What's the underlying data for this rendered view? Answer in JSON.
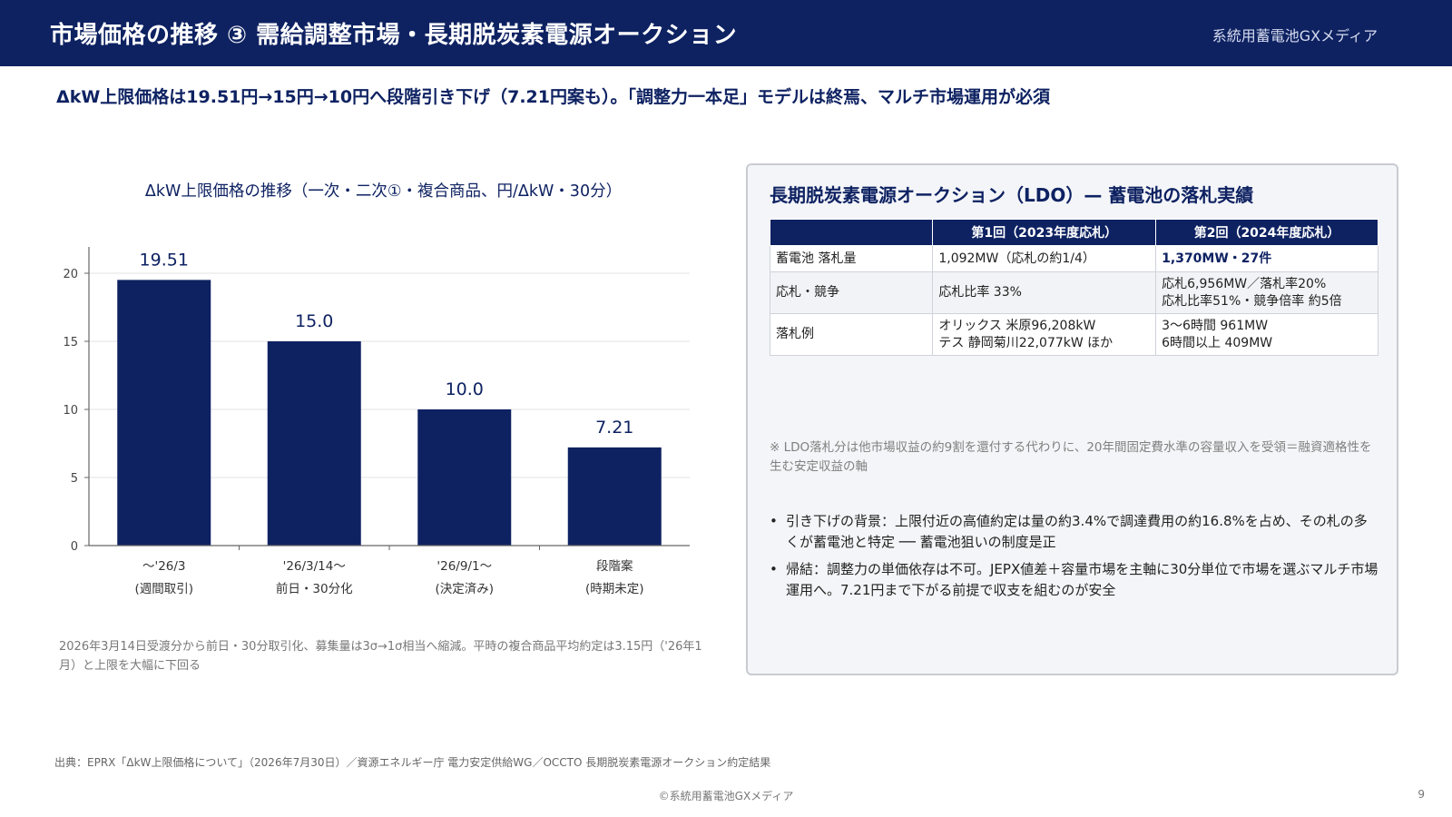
{
  "header": {
    "title": "市場価格の推移 ③ 需給調整市場・長期脱炭素電源オークション",
    "brand": "系統用蓄電池GXメディア"
  },
  "lead": "ΔkW上限価格は19.51円→15円→10円へ段階引き下げ（7.21円案も）。「調整力一本足」モデルは終焉、マルチ市場運用が必須",
  "chart_data": {
    "type": "bar",
    "title": "ΔkW上限価格の推移（一次・二次①・複合商品、円/ΔkW・30分）",
    "categories": [
      [
        "〜'26/3",
        "(週間取引)"
      ],
      [
        "'26/3/14〜",
        "前日・30分化"
      ],
      [
        "'26/9/1〜",
        "(決定済み)"
      ],
      [
        "段階案",
        "(時期未定)"
      ]
    ],
    "values": [
      19.51,
      15.0,
      10.0,
      7.21
    ],
    "value_labels": [
      "19.51",
      "15.0",
      "10.0",
      "7.21"
    ],
    "yticks": [
      0,
      5,
      10,
      15,
      20
    ],
    "ylim": [
      0,
      20
    ],
    "grid": true,
    "colors": {
      "bar": "#0e2262",
      "axis": "#666666",
      "grid": "#e3e3e3"
    }
  },
  "chart_note": "2026年3月14日受渡分から前日・30分取引化、募集量は3σ→1σ相当へ縮減。平時の複合商品平均約定は3.15円（'26年1月）と上限を大幅に下回る",
  "panel": {
    "title": "長期脱炭素電源オークション（LDO）— 蓄電池の落札実績",
    "table": {
      "headers": [
        "",
        "第1回（2023年度応札）",
        "第2回（2024年度応札）"
      ],
      "rows": [
        {
          "label": "蓄電池 落札量",
          "c1": [
            "1,092MW（応札の約1/4）"
          ],
          "c2": [
            "1,370MW・27件"
          ]
        },
        {
          "label": "応札・競争",
          "c1": [
            "応札比率 33%"
          ],
          "c2": [
            "応札6,956MW／落札率20%",
            "応札比率51%・競争倍率 約5倍"
          ]
        },
        {
          "label": "落札例",
          "c1": [
            "オリックス 米原96,208kW",
            "テス 静岡菊川22,077kW ほか"
          ],
          "c2": [
            "3〜6時間 961MW",
            "6時間以上 409MW"
          ]
        }
      ]
    },
    "note": "※ LDO落札分は他市場収益の約9割を還付する代わりに、20年間固定費水準の容量収入を受領＝融資適格性を生む安定収益の軸",
    "bullets": [
      "引き下げの背景：上限付近の高値約定は量の約3.4%で調達費用の約16.8%を占め、その札の多くが蓄電池と特定 ── 蓄電池狙いの制度是正",
      "帰結：調整力の単価依存は不可。JEPX値差＋容量市場を主軸に30分単位で市場を選ぶマルチ市場運用へ。7.21円まで下がる前提で収支を組むのが安全"
    ]
  },
  "footer": {
    "source": "出典：EPRX「ΔkW上限価格について」（2026年7月30日）／資源エネルギー庁 電力安定供給WG／OCCTO 長期脱炭素電源オークション約定結果",
    "copyright": "©系統用蓄電池GXメディア",
    "page": "9"
  }
}
